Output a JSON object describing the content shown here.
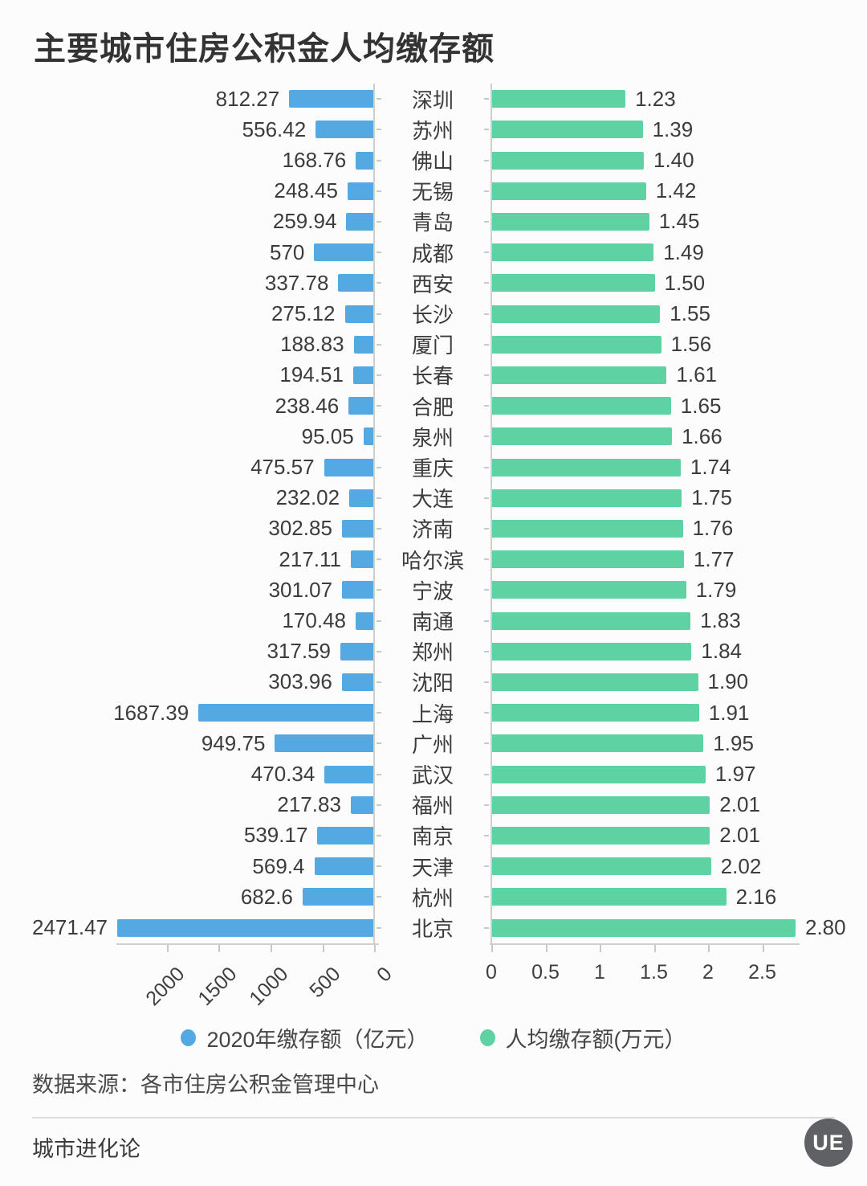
{
  "title": "主要城市住房公积金人均缴存额",
  "chart_data": {
    "type": "bar",
    "subtype": "diverging-horizontal",
    "grid": false,
    "legend_position": "bottom",
    "categories": [
      "深圳",
      "苏州",
      "佛山",
      "无锡",
      "青岛",
      "成都",
      "西安",
      "长沙",
      "厦门",
      "长春",
      "合肥",
      "泉州",
      "重庆",
      "大连",
      "济南",
      "哈尔滨",
      "宁波",
      "南通",
      "郑州",
      "沈阳",
      "上海",
      "广州",
      "武汉",
      "福州",
      "南京",
      "天津",
      "杭州",
      "北京"
    ],
    "series": [
      {
        "name": "2020年缴存额（亿元）",
        "color": "#55a9e2",
        "direction": "left",
        "values": [
          812.27,
          556.42,
          168.76,
          248.45,
          259.94,
          570,
          337.78,
          275.12,
          188.83,
          194.51,
          238.46,
          95.05,
          475.57,
          232.02,
          302.85,
          217.11,
          301.07,
          170.48,
          317.59,
          303.96,
          1687.39,
          949.75,
          470.34,
          217.83,
          539.17,
          569.4,
          682.6,
          2471.47
        ],
        "axis_ticks": [
          2000,
          1500,
          1000,
          500,
          0
        ],
        "xlim": [
          0,
          2500
        ]
      },
      {
        "name": "人均缴存额(万元）",
        "color": "#5fd2a3",
        "direction": "right",
        "values": [
          1.23,
          1.39,
          1.4,
          1.42,
          1.45,
          1.49,
          1.5,
          1.55,
          1.56,
          1.61,
          1.65,
          1.66,
          1.74,
          1.75,
          1.76,
          1.77,
          1.79,
          1.83,
          1.84,
          1.9,
          1.91,
          1.95,
          1.97,
          2.01,
          2.01,
          2.02,
          2.16,
          2.8
        ],
        "axis_ticks": [
          0,
          0.5,
          1,
          1.5,
          2,
          2.5
        ],
        "xlim": [
          0,
          2.8
        ]
      }
    ]
  },
  "source": "数据来源：各市住房公积金管理中心",
  "footer": {
    "brand": "城市进化论",
    "logo_text": "UE"
  }
}
